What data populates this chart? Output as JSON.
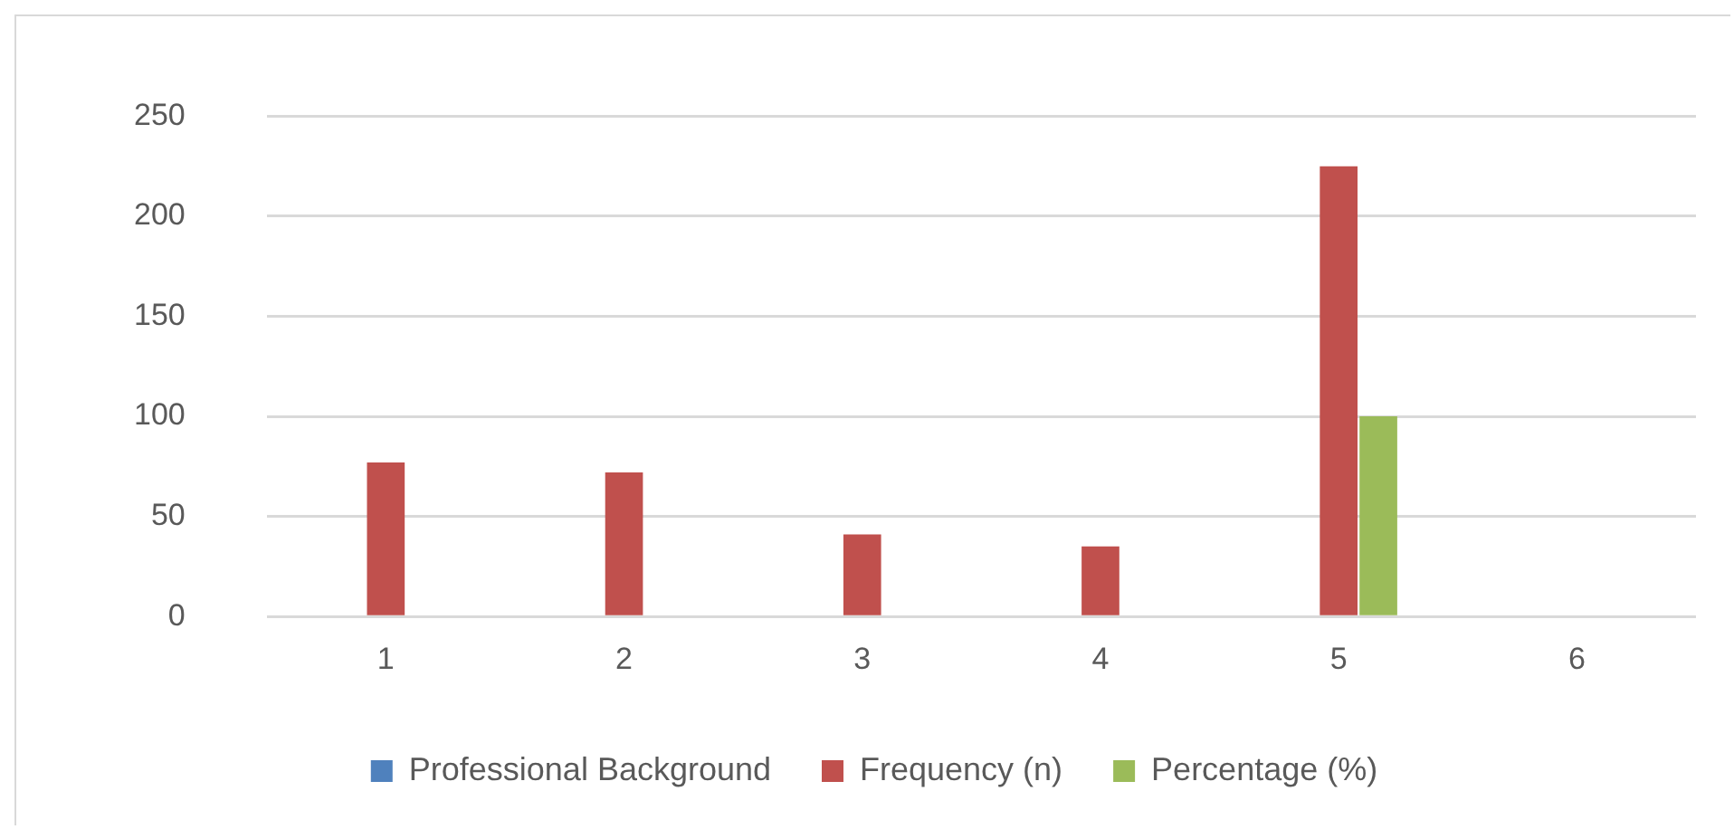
{
  "chart_data": {
    "type": "bar",
    "categories": [
      "1",
      "2",
      "3",
      "4",
      "5",
      "6"
    ],
    "series": [
      {
        "name": "Professional Background",
        "color": "#4f81bd",
        "values": [
          null,
          null,
          null,
          null,
          null,
          null
        ]
      },
      {
        "name": "Frequency (n)",
        "color": "#c0504d",
        "values": [
          77,
          72,
          41,
          35,
          225,
          null
        ]
      },
      {
        "name": "Percentage (%)",
        "color": "#9bbb59",
        "values": [
          null,
          null,
          null,
          null,
          100,
          null
        ]
      }
    ],
    "ylim": [
      0,
      250
    ],
    "yticks": [
      0,
      50,
      100,
      150,
      200,
      250
    ],
    "grid": "y",
    "legend": "bottom"
  }
}
